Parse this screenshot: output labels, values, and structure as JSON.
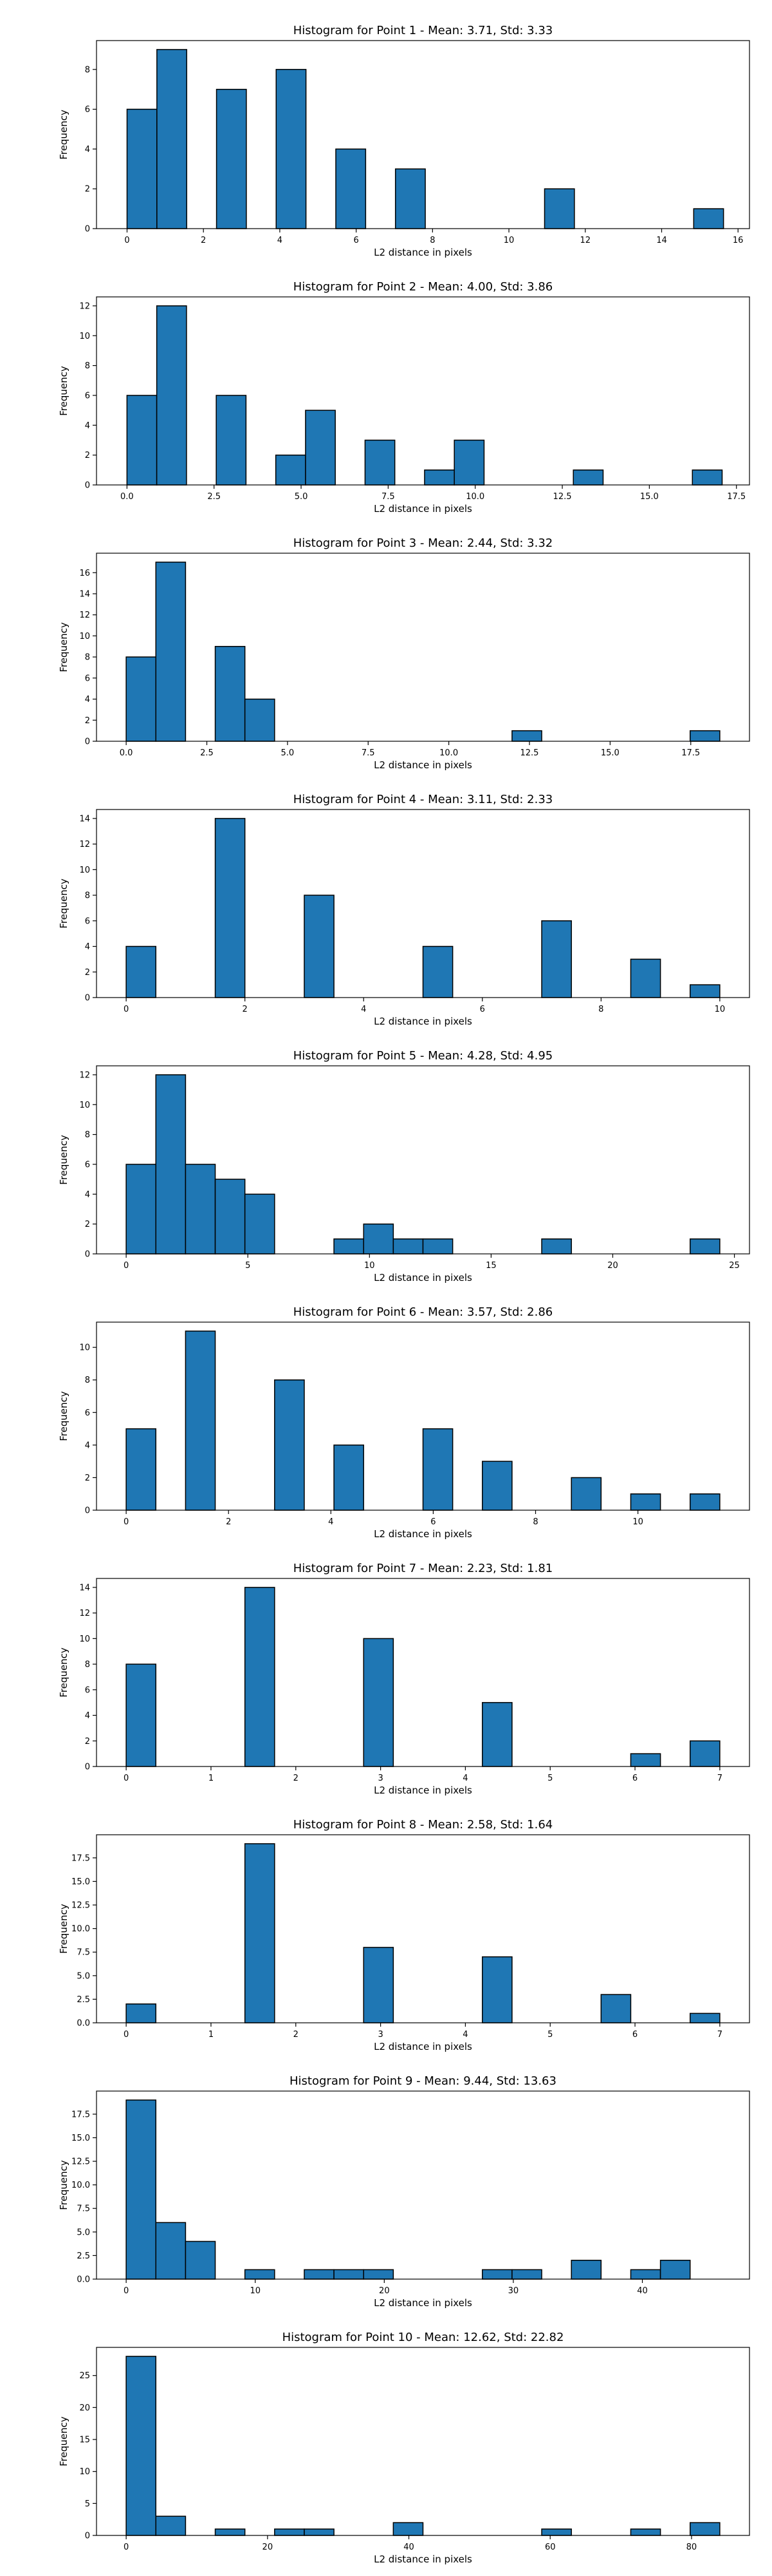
{
  "colors": {
    "bar_fill": "#1f77b4",
    "bar_edge": "#000000",
    "axis": "#000000"
  },
  "chart_data": [
    {
      "type": "bar",
      "title": "Histogram for Point 1 - Mean: 3.71, Std: 3.33",
      "xlabel": "L2 distance in pixels",
      "ylabel": "Frequency",
      "xlim": [
        -0.8,
        16.3
      ],
      "ylim": [
        0,
        9.45
      ],
      "xticks": [
        0,
        2,
        4,
        6,
        8,
        10,
        12,
        14,
        16
      ],
      "xtick_labels": [
        "0",
        "2",
        "4",
        "6",
        "8",
        "10",
        "12",
        "14",
        "16"
      ],
      "yticks": [
        0,
        2,
        4,
        6,
        8
      ],
      "ytick_labels": [
        "0",
        "2",
        "4",
        "6",
        "8"
      ],
      "bin_start": 0,
      "bin_width": 0.781,
      "bin_counts": [
        6,
        9,
        0,
        7,
        0,
        8,
        0,
        4,
        0,
        3,
        0,
        0,
        0,
        0,
        2,
        0,
        0,
        0,
        0,
        1
      ]
    },
    {
      "type": "bar",
      "title": "Histogram for Point 2 - Mean: 4.00, Std: 3.86",
      "xlabel": "L2 distance in pixels",
      "ylabel": "Frequency",
      "xlim": [
        -0.875,
        17.875
      ],
      "ylim": [
        0,
        12.6
      ],
      "xticks": [
        0,
        2.5,
        5,
        7.5,
        10,
        12.5,
        15,
        17.5
      ],
      "xtick_labels": [
        "0.0",
        "2.5",
        "5.0",
        "7.5",
        "10.0",
        "12.5",
        "15.0",
        "17.5"
      ],
      "yticks": [
        0,
        2,
        4,
        6,
        8,
        10,
        12
      ],
      "ytick_labels": [
        "0",
        "2",
        "4",
        "6",
        "8",
        "10",
        "12"
      ],
      "bin_start": 0,
      "bin_width": 0.8545,
      "bin_counts": [
        6,
        12,
        0,
        6,
        0,
        2,
        5,
        0,
        3,
        0,
        1,
        3,
        0,
        0,
        0,
        1,
        0,
        0,
        0,
        1
      ]
    },
    {
      "type": "bar",
      "title": "Histogram for Point 3 - Mean: 2.44, Std: 3.32",
      "xlabel": "L2 distance in pixels",
      "ylabel": "Frequency",
      "xlim": [
        -0.92,
        19.32
      ],
      "ylim": [
        0,
        17.85
      ],
      "xticks": [
        0,
        2.5,
        5,
        7.5,
        10,
        12.5,
        15,
        17.5
      ],
      "xtick_labels": [
        "0.0",
        "2.5",
        "5.0",
        "7.5",
        "10.0",
        "12.5",
        "15.0",
        "17.5"
      ],
      "yticks": [
        0,
        2,
        4,
        6,
        8,
        10,
        12,
        14,
        16
      ],
      "ytick_labels": [
        "0",
        "2",
        "4",
        "6",
        "8",
        "10",
        "12",
        "14",
        "16"
      ],
      "bin_start": 0,
      "bin_width": 0.92,
      "bin_counts": [
        8,
        17,
        0,
        9,
        4,
        0,
        0,
        0,
        0,
        0,
        0,
        0,
        0,
        1,
        0,
        0,
        0,
        0,
        0,
        1
      ]
    },
    {
      "type": "bar",
      "title": "Histogram for Point 4 - Mean: 3.11, Std: 2.33",
      "xlabel": "L2 distance in pixels",
      "ylabel": "Frequency",
      "xlim": [
        -0.5,
        10.5
      ],
      "ylim": [
        0,
        14.7
      ],
      "xticks": [
        0,
        2,
        4,
        6,
        8,
        10
      ],
      "xtick_labels": [
        "0",
        "2",
        "4",
        "6",
        "8",
        "10"
      ],
      "yticks": [
        0,
        2,
        4,
        6,
        8,
        10,
        12,
        14
      ],
      "ytick_labels": [
        "0",
        "2",
        "4",
        "6",
        "8",
        "10",
        "12",
        "14"
      ],
      "bin_start": 0,
      "bin_width": 0.5,
      "bin_counts": [
        4,
        0,
        0,
        14,
        0,
        0,
        8,
        0,
        0,
        0,
        4,
        0,
        0,
        0,
        6,
        0,
        0,
        3,
        0,
        1
      ]
    },
    {
      "type": "bar",
      "title": "Histogram for Point 5 - Mean: 4.28, Std: 4.95",
      "xlabel": "L2 distance in pixels",
      "ylabel": "Frequency",
      "xlim": [
        -1.22,
        25.62
      ],
      "ylim": [
        0,
        12.6
      ],
      "xticks": [
        0,
        5,
        10,
        15,
        20,
        25
      ],
      "xtick_labels": [
        "0",
        "5",
        "10",
        "15",
        "20",
        "25"
      ],
      "yticks": [
        0,
        2,
        4,
        6,
        8,
        10,
        12
      ],
      "ytick_labels": [
        "0",
        "2",
        "4",
        "6",
        "8",
        "10",
        "12"
      ],
      "bin_start": 0,
      "bin_width": 1.22,
      "bin_counts": [
        6,
        12,
        6,
        5,
        4,
        0,
        0,
        1,
        2,
        1,
        1,
        0,
        0,
        0,
        1,
        0,
        0,
        0,
        0,
        1
      ]
    },
    {
      "type": "bar",
      "title": "Histogram for Point 6 - Mean: 3.57, Std: 2.86",
      "xlabel": "L2 distance in pixels",
      "ylabel": "Frequency",
      "xlim": [
        -0.58,
        12.18
      ],
      "ylim": [
        0,
        11.55
      ],
      "xticks": [
        0,
        2,
        4,
        6,
        8,
        10
      ],
      "xtick_labels": [
        "0",
        "2",
        "4",
        "6",
        "8",
        "10"
      ],
      "yticks": [
        0,
        2,
        4,
        6,
        8,
        10
      ],
      "ytick_labels": [
        "0",
        "2",
        "4",
        "6",
        "8",
        "10"
      ],
      "bin_start": 0,
      "bin_width": 0.58,
      "bin_counts": [
        5,
        0,
        11,
        0,
        0,
        8,
        0,
        4,
        0,
        0,
        5,
        0,
        3,
        0,
        0,
        2,
        0,
        1,
        0,
        1
      ]
    },
    {
      "type": "bar",
      "title": "Histogram for Point 7 - Mean: 2.23, Std: 1.81",
      "xlabel": "L2 distance in pixels",
      "ylabel": "Frequency",
      "xlim": [
        -0.35,
        7.35
      ],
      "ylim": [
        0,
        14.7
      ],
      "xticks": [
        0,
        1,
        2,
        3,
        4,
        5,
        6,
        7
      ],
      "xtick_labels": [
        "0",
        "1",
        "2",
        "3",
        "4",
        "5",
        "6",
        "7"
      ],
      "yticks": [
        0,
        2,
        4,
        6,
        8,
        10,
        12,
        14
      ],
      "ytick_labels": [
        "0",
        "2",
        "4",
        "6",
        "8",
        "10",
        "12",
        "14"
      ],
      "bin_start": 0,
      "bin_width": 0.35,
      "bin_counts": [
        8,
        0,
        0,
        0,
        14,
        0,
        0,
        0,
        10,
        0,
        0,
        0,
        5,
        0,
        0,
        0,
        0,
        1,
        0,
        2
      ]
    },
    {
      "type": "bar",
      "title": "Histogram for Point 8 - Mean: 2.58, Std: 1.64",
      "xlabel": "L2 distance in pixels",
      "ylabel": "Frequency",
      "xlim": [
        -0.35,
        7.35
      ],
      "ylim": [
        0,
        19.95
      ],
      "xticks": [
        0,
        1,
        2,
        3,
        4,
        5,
        6,
        7
      ],
      "xtick_labels": [
        "0",
        "1",
        "2",
        "3",
        "4",
        "5",
        "6",
        "7"
      ],
      "yticks": [
        0,
        2.5,
        5,
        7.5,
        10,
        12.5,
        15,
        17.5
      ],
      "ytick_labels": [
        "0.0",
        "2.5",
        "5.0",
        "7.5",
        "10.0",
        "12.5",
        "15.0",
        "17.5"
      ],
      "bin_start": 0,
      "bin_width": 0.35,
      "bin_counts": [
        2,
        0,
        0,
        0,
        19,
        0,
        0,
        0,
        8,
        0,
        0,
        0,
        7,
        0,
        0,
        0,
        3,
        0,
        0,
        1
      ]
    },
    {
      "type": "bar",
      "title": "Histogram for Point 9 - Mean: 9.44, Std: 13.63",
      "xlabel": "L2 distance in pixels",
      "ylabel": "Frequency",
      "xlim": [
        -2.3,
        48.3
      ],
      "ylim": [
        0,
        19.95
      ],
      "xticks": [
        0,
        10,
        20,
        30,
        40
      ],
      "xtick_labels": [
        "0",
        "10",
        "20",
        "30",
        "40"
      ],
      "yticks": [
        0,
        2.5,
        5,
        7.5,
        10,
        12.5,
        15,
        17.5
      ],
      "ytick_labels": [
        "0.0",
        "2.5",
        "5.0",
        "7.5",
        "10.0",
        "12.5",
        "15.0",
        "17.5"
      ],
      "bin_start": 0,
      "bin_width": 2.3,
      "bin_counts": [
        19,
        6,
        4,
        0,
        1,
        0,
        1,
        1,
        1,
        0,
        0,
        0,
        1,
        1,
        0,
        2,
        0,
        1,
        2,
        0
      ]
    },
    {
      "type": "bar",
      "title": "Histogram for Point 10 - Mean: 12.62, Std: 22.82",
      "xlabel": "L2 distance in pixels",
      "ylabel": "Frequency",
      "xlim": [
        -4.2,
        88.2
      ],
      "ylim": [
        0,
        29.4
      ],
      "xticks": [
        0,
        20,
        40,
        60,
        80
      ],
      "xtick_labels": [
        "0",
        "20",
        "40",
        "60",
        "80"
      ],
      "yticks": [
        0,
        5,
        10,
        15,
        20,
        25
      ],
      "ytick_labels": [
        "0",
        "5",
        "10",
        "15",
        "20",
        "25"
      ],
      "bin_start": 0,
      "bin_width": 4.2,
      "bin_counts": [
        28,
        3,
        0,
        1,
        0,
        1,
        1,
        0,
        0,
        2,
        0,
        0,
        0,
        0,
        1,
        0,
        0,
        1,
        0,
        2
      ]
    }
  ]
}
